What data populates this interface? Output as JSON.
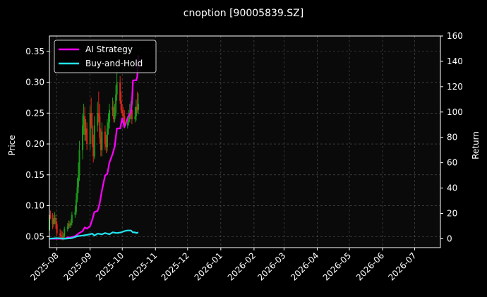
{
  "chart_data": {
    "type": "line",
    "title": "cnoption [90005839.SZ]",
    "ylabel": "Price",
    "y2label": "Return",
    "ylim": [
      0.032,
      0.375
    ],
    "y2lim": [
      -7,
      160
    ],
    "yticks": [
      "0.05",
      "0.10",
      "0.15",
      "0.20",
      "0.25",
      "0.30",
      "0.35"
    ],
    "y2ticks": [
      "0",
      "20",
      "40",
      "60",
      "80",
      "100",
      "120",
      "140",
      "160"
    ],
    "x_range": [
      "2025-07-25",
      "2026-07-25"
    ],
    "xticks": [
      "2025-08",
      "2025-09",
      "2025-10",
      "2025-11",
      "2025-12",
      "2026-01",
      "2026-02",
      "2026-03",
      "2026-04",
      "2026-05",
      "2026-06",
      "2026-07"
    ],
    "grid": true,
    "legend_position": "top-left",
    "colors": {
      "background": "#000000",
      "plot_bg": "#0a0a0a",
      "grid": "#555555",
      "up": "#1a9a1a",
      "down": "#e0271a",
      "ai_strategy": "#ff00ff",
      "buy_and_hold": "#22e5f2"
    },
    "series": [
      {
        "name": "AI Strategy",
        "axis": "right",
        "x": [
          "2025-07-25",
          "2025-08-01",
          "2025-08-05",
          "2025-08-08",
          "2025-08-11",
          "2025-08-14",
          "2025-08-18",
          "2025-08-21",
          "2025-08-25",
          "2025-08-27",
          "2025-08-29",
          "2025-09-01",
          "2025-09-03",
          "2025-09-05",
          "2025-09-08",
          "2025-09-10",
          "2025-09-12",
          "2025-09-15",
          "2025-09-17",
          "2025-09-19",
          "2025-09-22",
          "2025-09-24",
          "2025-09-26",
          "2025-09-29",
          "2025-10-01",
          "2025-10-03",
          "2025-10-06",
          "2025-10-09",
          "2025-10-10",
          "2025-10-11",
          "2025-10-13",
          "2025-10-14",
          "2025-10-15",
          "2025-10-16"
        ],
        "values": [
          0,
          0,
          0,
          0,
          1,
          1,
          2,
          4,
          6,
          9,
          8,
          10,
          15,
          21,
          22,
          28,
          38,
          50,
          51,
          60,
          67,
          73,
          87,
          87,
          95,
          88,
          95,
          100,
          107,
          125,
          125,
          125,
          128,
          145
        ]
      },
      {
        "name": "Buy-and-Hold",
        "axis": "right",
        "x": [
          "2025-07-25",
          "2025-08-01",
          "2025-08-08",
          "2025-08-15",
          "2025-08-20",
          "2025-08-25",
          "2025-08-29",
          "2025-09-03",
          "2025-09-05",
          "2025-09-08",
          "2025-09-12",
          "2025-09-15",
          "2025-09-19",
          "2025-09-22",
          "2025-09-26",
          "2025-09-30",
          "2025-10-03",
          "2025-10-06",
          "2025-10-09",
          "2025-10-11",
          "2025-10-13",
          "2025-10-14",
          "2025-10-16"
        ],
        "values": [
          0,
          0.5,
          0,
          0.5,
          2,
          2.5,
          3,
          4,
          2.5,
          4,
          3.5,
          4.5,
          3.5,
          5,
          4.5,
          5,
          6,
          6.5,
          6.5,
          5,
          5,
          4.5,
          5
        ]
      }
    ],
    "candles": {
      "axis": "left",
      "x": [
        "2025-07-25",
        "2025-07-26",
        "2025-07-28",
        "2025-07-29",
        "2025-07-30",
        "2025-07-31",
        "2025-08-01",
        "2025-08-04",
        "2025-08-05",
        "2025-08-06",
        "2025-08-07",
        "2025-08-08",
        "2025-08-11",
        "2025-08-12",
        "2025-08-13",
        "2025-08-14",
        "2025-08-15",
        "2025-08-18",
        "2025-08-19",
        "2025-08-20",
        "2025-08-21",
        "2025-08-22",
        "2025-08-25",
        "2025-08-26",
        "2025-08-27",
        "2025-08-28",
        "2025-08-29",
        "2025-09-01",
        "2025-09-02",
        "2025-09-03",
        "2025-09-04",
        "2025-09-05",
        "2025-09-08",
        "2025-09-09",
        "2025-09-10",
        "2025-09-11",
        "2025-09-12",
        "2025-09-15",
        "2025-09-16",
        "2025-09-17",
        "2025-09-18",
        "2025-09-19",
        "2025-09-22",
        "2025-09-23",
        "2025-09-24",
        "2025-09-25",
        "2025-09-26",
        "2025-09-29",
        "2025-09-30",
        "2025-10-01",
        "2025-10-02",
        "2025-10-03",
        "2025-10-06",
        "2025-10-07",
        "2025-10-08",
        "2025-10-09",
        "2025-10-10",
        "2025-10-13",
        "2025-10-14",
        "2025-10-15",
        "2025-10-16"
      ],
      "open": [
        0.06,
        0.085,
        0.08,
        0.07,
        0.078,
        0.08,
        0.07,
        0.055,
        0.052,
        0.05,
        0.048,
        0.05,
        0.062,
        0.066,
        0.07,
        0.068,
        0.072,
        0.085,
        0.09,
        0.11,
        0.13,
        0.15,
        0.19,
        0.23,
        0.245,
        0.215,
        0.225,
        0.2,
        0.25,
        0.23,
        0.2,
        0.18,
        0.23,
        0.25,
        0.245,
        0.21,
        0.19,
        0.22,
        0.2,
        0.195,
        0.225,
        0.235,
        0.255,
        0.26,
        0.24,
        0.25,
        0.28,
        0.3,
        0.27,
        0.255,
        0.25,
        0.245,
        0.23,
        0.235,
        0.24,
        0.25,
        0.255,
        0.24,
        0.245,
        0.26,
        0.255
      ],
      "close": [
        0.085,
        0.08,
        0.07,
        0.078,
        0.08,
        0.07,
        0.055,
        0.052,
        0.05,
        0.048,
        0.05,
        0.062,
        0.066,
        0.07,
        0.068,
        0.072,
        0.085,
        0.09,
        0.11,
        0.13,
        0.15,
        0.19,
        0.23,
        0.245,
        0.215,
        0.225,
        0.2,
        0.25,
        0.23,
        0.2,
        0.18,
        0.23,
        0.25,
        0.245,
        0.21,
        0.19,
        0.22,
        0.2,
        0.195,
        0.225,
        0.235,
        0.255,
        0.26,
        0.24,
        0.25,
        0.28,
        0.3,
        0.27,
        0.255,
        0.25,
        0.245,
        0.23,
        0.235,
        0.24,
        0.25,
        0.255,
        0.24,
        0.245,
        0.26,
        0.255,
        0.265
      ],
      "high": [
        0.09,
        0.092,
        0.088,
        0.085,
        0.09,
        0.085,
        0.075,
        0.062,
        0.06,
        0.058,
        0.055,
        0.066,
        0.072,
        0.076,
        0.075,
        0.078,
        0.09,
        0.1,
        0.12,
        0.145,
        0.17,
        0.205,
        0.25,
        0.265,
        0.26,
        0.24,
        0.235,
        0.262,
        0.275,
        0.25,
        0.215,
        0.245,
        0.268,
        0.285,
        0.265,
        0.225,
        0.235,
        0.23,
        0.215,
        0.24,
        0.25,
        0.265,
        0.275,
        0.27,
        0.265,
        0.295,
        0.32,
        0.31,
        0.285,
        0.265,
        0.26,
        0.255,
        0.245,
        0.255,
        0.265,
        0.27,
        0.275,
        0.26,
        0.272,
        0.285,
        0.282
      ],
      "low": [
        0.055,
        0.078,
        0.062,
        0.065,
        0.07,
        0.062,
        0.05,
        0.046,
        0.045,
        0.044,
        0.044,
        0.048,
        0.058,
        0.062,
        0.064,
        0.064,
        0.068,
        0.08,
        0.085,
        0.105,
        0.12,
        0.14,
        0.175,
        0.215,
        0.205,
        0.205,
        0.19,
        0.19,
        0.225,
        0.195,
        0.17,
        0.175,
        0.22,
        0.235,
        0.2,
        0.18,
        0.18,
        0.19,
        0.185,
        0.188,
        0.215,
        0.225,
        0.245,
        0.235,
        0.235,
        0.245,
        0.27,
        0.265,
        0.25,
        0.245,
        0.24,
        0.225,
        0.225,
        0.23,
        0.235,
        0.24,
        0.232,
        0.235,
        0.238,
        0.25,
        0.248
      ]
    }
  }
}
